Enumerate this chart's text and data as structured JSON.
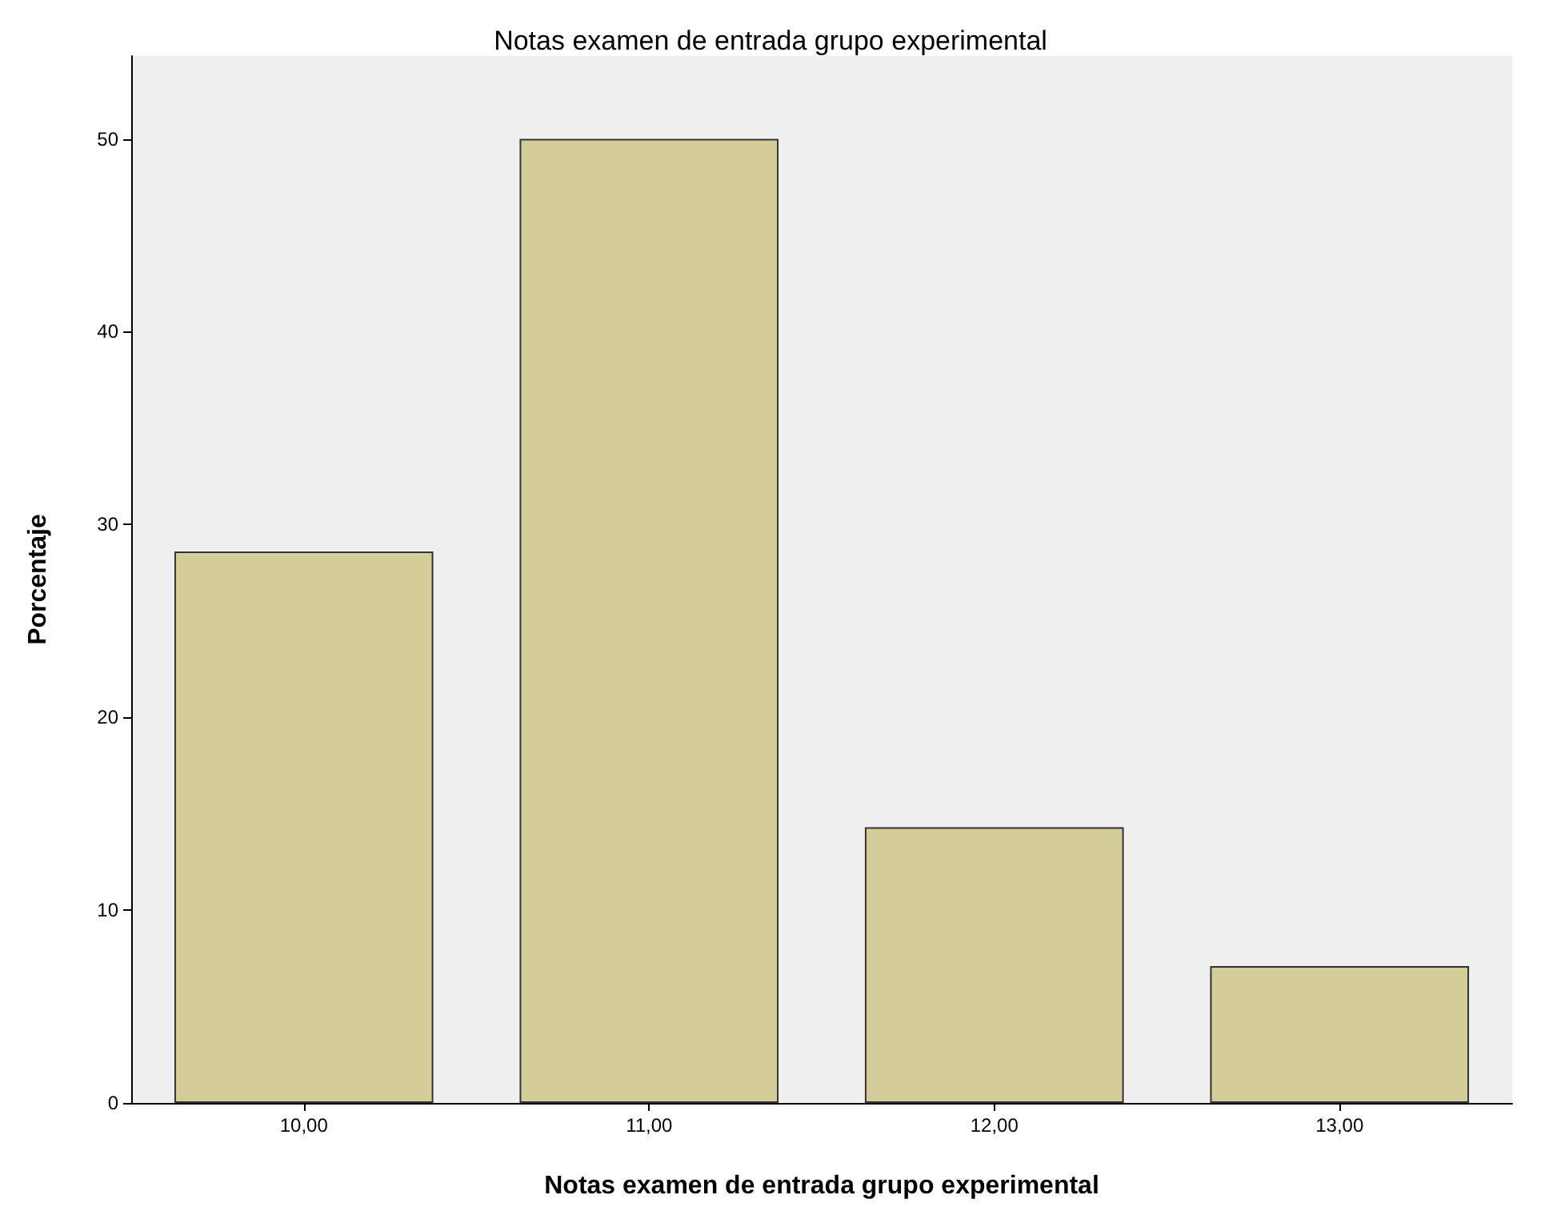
{
  "chart_data": {
    "type": "bar",
    "title": "Notas examen de entrada grupo experimental",
    "xlabel": "Notas examen de entrada grupo experimental",
    "ylabel": "Porcentaje",
    "categories": [
      "10,00",
      "11,00",
      "12,00",
      "13,00"
    ],
    "values": [
      28.6,
      50,
      14.3,
      7.1
    ],
    "color": "#d3ce99",
    "ylim": [
      0,
      54.3
    ],
    "yticks": [
      0,
      10,
      20,
      30,
      40,
      50
    ],
    "grid": false
  }
}
